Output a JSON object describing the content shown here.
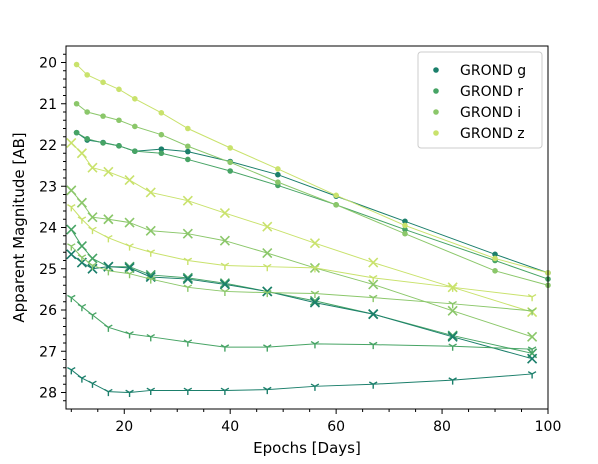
{
  "chart_data": {
    "type": "line",
    "title": "",
    "xlabel": "Epochs [Days]",
    "ylabel": "Apparent Magnitude [AB]",
    "xlim": [
      9,
      100
    ],
    "ylim": [
      28.4,
      19.6
    ],
    "y_inverted": true,
    "x_ticks": [
      20,
      40,
      60,
      80,
      100
    ],
    "y_ticks": [
      20,
      21,
      22,
      23,
      24,
      25,
      26,
      27,
      28
    ],
    "grid": false,
    "legend_position": "top-right",
    "colors": {
      "g": "#1b7f6b",
      "r": "#47a465",
      "i": "#8bc76a",
      "z": "#c9e26c"
    },
    "series": [
      {
        "name": "GROND g",
        "marker": "dot",
        "color": "#1b7f6b",
        "x": [
          11,
          13,
          16,
          19,
          22,
          27,
          32,
          40,
          49,
          60,
          73,
          90,
          100
        ],
        "y": [
          21.7,
          21.88,
          21.94,
          22.02,
          22.15,
          22.1,
          22.16,
          22.4,
          22.72,
          23.24,
          23.85,
          24.65,
          25.1
        ]
      },
      {
        "name": "GROND r",
        "marker": "dot",
        "color": "#47a465",
        "x": [
          11,
          13,
          16,
          19,
          22,
          27,
          32,
          40,
          49,
          60,
          73,
          90,
          100
        ],
        "y": [
          21.7,
          21.85,
          21.95,
          22.02,
          22.15,
          22.2,
          22.35,
          22.63,
          22.98,
          23.45,
          24.05,
          24.8,
          25.25
        ]
      },
      {
        "name": "GROND i",
        "marker": "dot",
        "color": "#8bc76a",
        "x": [
          11,
          13,
          16,
          19,
          22,
          27,
          32,
          40,
          49,
          60,
          73,
          90,
          100
        ],
        "y": [
          21.0,
          21.2,
          21.3,
          21.4,
          21.55,
          21.75,
          22.03,
          22.42,
          22.9,
          23.45,
          24.15,
          25.05,
          25.4
        ]
      },
      {
        "name": "GROND z",
        "marker": "dot",
        "color": "#c9e26c",
        "x": [
          11,
          13,
          16,
          19,
          22,
          27,
          32,
          40,
          49,
          60,
          73,
          90,
          100
        ],
        "y": [
          20.05,
          20.3,
          20.48,
          20.65,
          20.88,
          21.22,
          21.6,
          22.07,
          22.58,
          23.22,
          23.95,
          24.75,
          25.1
        ]
      },
      {
        "name": "",
        "marker": "x",
        "color": "#c9e26c",
        "x": [
          10,
          12,
          14,
          17,
          21,
          25,
          32,
          39,
          47,
          56,
          67,
          82,
          97
        ],
        "y": [
          21.95,
          22.2,
          22.55,
          22.65,
          22.85,
          23.15,
          23.35,
          23.65,
          23.98,
          24.38,
          24.85,
          25.45,
          26.05
        ]
      },
      {
        "name": "",
        "marker": "x",
        "color": "#8bc76a",
        "x": [
          10,
          12,
          14,
          17,
          21,
          25,
          32,
          39,
          47,
          56,
          67,
          82,
          97
        ],
        "y": [
          23.1,
          23.4,
          23.75,
          23.8,
          23.88,
          24.08,
          24.15,
          24.32,
          24.62,
          24.98,
          25.38,
          26.02,
          26.65
        ]
      },
      {
        "name": "",
        "marker": "x",
        "color": "#47a465",
        "x": [
          10,
          12,
          14,
          17,
          21,
          25,
          32,
          39,
          47,
          56,
          67,
          82,
          97
        ],
        "y": [
          24.05,
          24.45,
          24.75,
          24.95,
          24.95,
          25.15,
          25.22,
          25.35,
          25.55,
          25.78,
          26.1,
          26.62,
          27.05
        ]
      },
      {
        "name": "",
        "marker": "x",
        "color": "#1b7f6b",
        "x": [
          10,
          12,
          14,
          17,
          21,
          25,
          32,
          39,
          47,
          56,
          67,
          82,
          97
        ],
        "y": [
          24.65,
          24.85,
          25.0,
          24.95,
          24.98,
          25.2,
          25.25,
          25.38,
          25.55,
          25.82,
          26.1,
          26.65,
          27.18
        ]
      },
      {
        "name": "",
        "marker": "tri",
        "color": "#c9e26c",
        "x": [
          10,
          12,
          14,
          17,
          21,
          25,
          32,
          39,
          47,
          56,
          67,
          82,
          97
        ],
        "y": [
          23.5,
          23.8,
          24.05,
          24.25,
          24.45,
          24.6,
          24.8,
          24.92,
          24.95,
          24.98,
          25.22,
          25.45,
          25.68
        ]
      },
      {
        "name": "",
        "marker": "tri",
        "color": "#8bc76a",
        "x": [
          10,
          12,
          14,
          17,
          21,
          25,
          32,
          39,
          47,
          56,
          67,
          82,
          97
        ],
        "y": [
          24.45,
          24.72,
          24.92,
          25.05,
          25.12,
          25.25,
          25.45,
          25.55,
          25.58,
          25.6,
          25.7,
          25.85,
          26.02
        ]
      },
      {
        "name": "",
        "marker": "tri",
        "color": "#47a465",
        "x": [
          10,
          12,
          14,
          17,
          21,
          25,
          32,
          39,
          47,
          56,
          67,
          82,
          97
        ],
        "y": [
          25.7,
          25.92,
          26.12,
          26.42,
          26.58,
          26.65,
          26.78,
          26.9,
          26.9,
          26.82,
          26.84,
          26.88,
          26.95
        ]
      },
      {
        "name": "",
        "marker": "tri",
        "color": "#1b7f6b",
        "x": [
          10,
          12,
          14,
          17,
          21,
          25,
          32,
          39,
          47,
          56,
          67,
          82,
          97
        ],
        "y": [
          27.45,
          27.65,
          27.78,
          27.98,
          28.0,
          27.95,
          27.95,
          27.95,
          27.93,
          27.85,
          27.8,
          27.7,
          27.55
        ]
      }
    ]
  }
}
